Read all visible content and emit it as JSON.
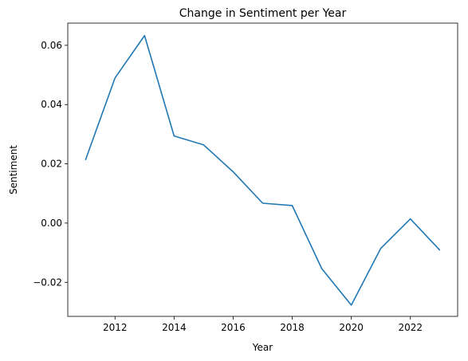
{
  "chart_data": {
    "type": "line",
    "title": "Change in Sentiment per Year",
    "xlabel": "Year",
    "ylabel": "Sentiment",
    "xlim": [
      2010.4,
      2023.6
    ],
    "ylim": [
      -0.0315,
      0.0675
    ],
    "xticks": [
      2012,
      2014,
      2016,
      2018,
      2020,
      2022
    ],
    "xtick_labels": [
      "2012",
      "2014",
      "2016",
      "2018",
      "2020",
      "2022"
    ],
    "yticks": [
      -0.02,
      0.0,
      0.02,
      0.04,
      0.06
    ],
    "ytick_labels": [
      "−0.02",
      "0.00",
      "0.02",
      "0.04",
      "0.06"
    ],
    "grid": false,
    "series": [
      {
        "color": "#1f77b4",
        "x": [
          2011,
          2012,
          2013,
          2014,
          2015,
          2016,
          2017,
          2018,
          2019,
          2020,
          2021,
          2022,
          2023
        ],
        "y": [
          0.0213,
          0.049,
          0.0633,
          0.0294,
          0.0264,
          0.0173,
          0.0067,
          0.0059,
          -0.0154,
          -0.0277,
          -0.0085,
          0.0014,
          -0.0092
        ]
      }
    ]
  }
}
